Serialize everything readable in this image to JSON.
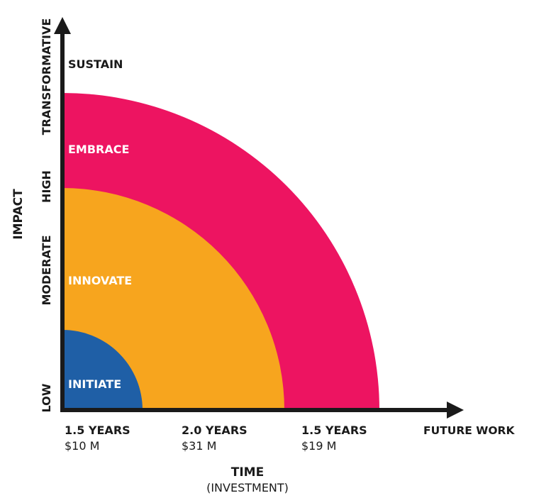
{
  "colors": {
    "outer": "#ED1461",
    "middle": "#F7A51E",
    "inner": "#1F5FA6",
    "axis": "#1A1A1A",
    "band_label": "#FFFFFF",
    "text": "#1A1A1A"
  },
  "y_axis": {
    "title": "IMPACT",
    "levels": [
      "LOW",
      "MODERATE",
      "HIGH",
      "TRANSFORMATIVE"
    ]
  },
  "x_axis": {
    "title": "TIME",
    "subtitle": "(INVESTMENT)"
  },
  "phases": [
    {
      "name": "INITIATE",
      "duration": "1.5 YEARS",
      "cost": "$10 M"
    },
    {
      "name": "INNOVATE",
      "duration": "2.0 YEARS",
      "cost": "$31 M"
    },
    {
      "name": "EMBRACE",
      "duration": "1.5 YEARS",
      "cost": "$19 M"
    },
    {
      "name": "SUSTAIN",
      "duration": "FUTURE WORK",
      "cost": ""
    }
  ],
  "icons": {
    "y_arrow": "arrow-up-icon",
    "x_arrow": "arrow-right-icon"
  }
}
